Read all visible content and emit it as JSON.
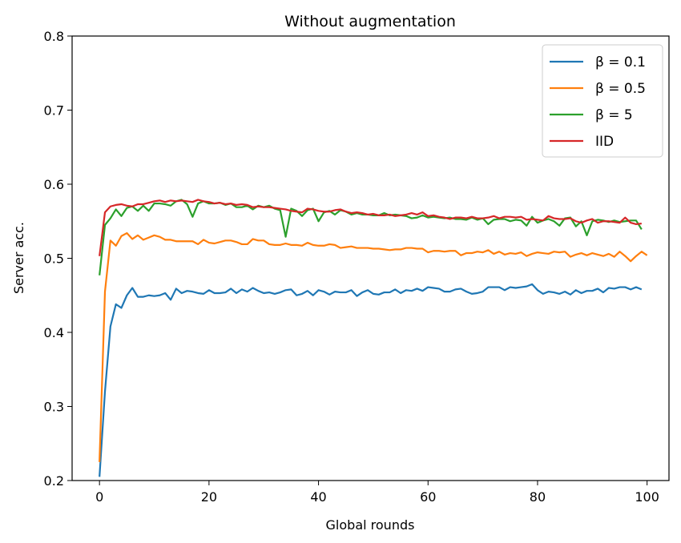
{
  "chart_data": {
    "type": "line",
    "title": "Without augmentation",
    "xlabel": "Global rounds",
    "ylabel": "Server acc.",
    "xlim": [
      -5,
      104
    ],
    "ylim": [
      0.2,
      0.8
    ],
    "xticks": [
      0,
      20,
      40,
      60,
      80,
      100
    ],
    "yticks": [
      0.2,
      0.3,
      0.4,
      0.5,
      0.6,
      0.7,
      0.8
    ],
    "xtick_labels": [
      "0",
      "20",
      "40",
      "60",
      "80",
      "100"
    ],
    "ytick_labels": [
      "0.2",
      "0.3",
      "0.4",
      "0.5",
      "0.6",
      "0.7",
      "0.8"
    ],
    "grid": false,
    "legend_position": "top-right",
    "series": [
      {
        "name": "β = 0.1",
        "color": "#1f77b4",
        "values": [
          0.205,
          0.32,
          0.408,
          0.438,
          0.433,
          0.45,
          0.46,
          0.448,
          0.448,
          0.45,
          0.449,
          0.45,
          0.453,
          0.444,
          0.459,
          0.453,
          0.456,
          0.455,
          0.453,
          0.452,
          0.457,
          0.453,
          0.453,
          0.454,
          0.459,
          0.453,
          0.458,
          0.455,
          0.46,
          0.456,
          0.453,
          0.454,
          0.452,
          0.454,
          0.457,
          0.458,
          0.45,
          0.452,
          0.456,
          0.45,
          0.457,
          0.455,
          0.451,
          0.455,
          0.454,
          0.454,
          0.457,
          0.449,
          0.454,
          0.457,
          0.452,
          0.451,
          0.454,
          0.454,
          0.458,
          0.453,
          0.457,
          0.456,
          0.459,
          0.456,
          0.461,
          0.46,
          0.459,
          0.455,
          0.455,
          0.458,
          0.459,
          0.455,
          0.452,
          0.453,
          0.455,
          0.461,
          0.461,
          0.461,
          0.457,
          0.461,
          0.46,
          0.461,
          0.462,
          0.465,
          0.457,
          0.452,
          0.455,
          0.454,
          0.452,
          0.455,
          0.451,
          0.457,
          0.453,
          0.456,
          0.456,
          0.459,
          0.454,
          0.46,
          0.459,
          0.461,
          0.461,
          0.458,
          0.461,
          0.458
        ]
      },
      {
        "name": "β = 0.5",
        "color": "#ff7f0e",
        "values": [
          0.225,
          0.455,
          0.524,
          0.517,
          0.53,
          0.534,
          0.526,
          0.531,
          0.525,
          0.528,
          0.531,
          0.529,
          0.525,
          0.525,
          0.523,
          0.523,
          0.523,
          0.523,
          0.519,
          0.525,
          0.521,
          0.52,
          0.522,
          0.524,
          0.524,
          0.522,
          0.519,
          0.519,
          0.526,
          0.524,
          0.524,
          0.519,
          0.518,
          0.518,
          0.52,
          0.518,
          0.518,
          0.517,
          0.521,
          0.518,
          0.517,
          0.517,
          0.519,
          0.518,
          0.514,
          0.515,
          0.516,
          0.514,
          0.514,
          0.514,
          0.513,
          0.513,
          0.512,
          0.511,
          0.512,
          0.512,
          0.514,
          0.514,
          0.513,
          0.513,
          0.508,
          0.51,
          0.51,
          0.509,
          0.51,
          0.51,
          0.504,
          0.507,
          0.507,
          0.509,
          0.508,
          0.511,
          0.506,
          0.509,
          0.505,
          0.507,
          0.506,
          0.508,
          0.503,
          0.506,
          0.508,
          0.507,
          0.506,
          0.509,
          0.508,
          0.509,
          0.502,
          0.505,
          0.507,
          0.504,
          0.507,
          0.505,
          0.503,
          0.506,
          0.502,
          0.509,
          0.503,
          0.496,
          0.503,
          0.509,
          0.504
        ]
      },
      {
        "name": "β = 5",
        "color": "#2ca02c",
        "values": [
          0.477,
          0.545,
          0.554,
          0.566,
          0.557,
          0.568,
          0.57,
          0.564,
          0.571,
          0.564,
          0.574,
          0.574,
          0.573,
          0.571,
          0.577,
          0.579,
          0.573,
          0.556,
          0.574,
          0.577,
          0.574,
          0.574,
          0.575,
          0.572,
          0.574,
          0.569,
          0.569,
          0.571,
          0.566,
          0.571,
          0.569,
          0.571,
          0.567,
          0.565,
          0.529,
          0.567,
          0.564,
          0.557,
          0.565,
          0.567,
          0.55,
          0.562,
          0.564,
          0.559,
          0.565,
          0.563,
          0.559,
          0.561,
          0.559,
          0.559,
          0.558,
          0.558,
          0.561,
          0.558,
          0.559,
          0.558,
          0.557,
          0.554,
          0.555,
          0.558,
          0.555,
          0.556,
          0.555,
          0.554,
          0.555,
          0.553,
          0.553,
          0.552,
          0.555,
          0.552,
          0.554,
          0.546,
          0.552,
          0.553,
          0.553,
          0.55,
          0.552,
          0.551,
          0.544,
          0.556,
          0.548,
          0.551,
          0.553,
          0.55,
          0.544,
          0.554,
          0.555,
          0.543,
          0.55,
          0.531,
          0.55,
          0.552,
          0.551,
          0.549,
          0.551,
          0.549,
          0.55,
          0.551,
          0.551,
          0.539
        ]
      },
      {
        "name": "IID",
        "color": "#d62728",
        "values": [
          0.503,
          0.562,
          0.57,
          0.572,
          0.573,
          0.571,
          0.57,
          0.573,
          0.573,
          0.575,
          0.577,
          0.578,
          0.576,
          0.578,
          0.577,
          0.578,
          0.577,
          0.576,
          0.579,
          0.577,
          0.576,
          0.574,
          0.575,
          0.573,
          0.574,
          0.572,
          0.573,
          0.572,
          0.569,
          0.57,
          0.569,
          0.569,
          0.568,
          0.567,
          0.566,
          0.564,
          0.563,
          0.562,
          0.567,
          0.566,
          0.564,
          0.563,
          0.563,
          0.565,
          0.566,
          0.563,
          0.561,
          0.562,
          0.561,
          0.559,
          0.56,
          0.558,
          0.558,
          0.559,
          0.557,
          0.558,
          0.559,
          0.561,
          0.559,
          0.562,
          0.557,
          0.558,
          0.556,
          0.555,
          0.553,
          0.555,
          0.555,
          0.554,
          0.556,
          0.554,
          0.554,
          0.555,
          0.557,
          0.554,
          0.556,
          0.556,
          0.555,
          0.556,
          0.552,
          0.553,
          0.552,
          0.551,
          0.557,
          0.554,
          0.553,
          0.553,
          0.554,
          0.55,
          0.548,
          0.551,
          0.553,
          0.548,
          0.55,
          0.55,
          0.549,
          0.548,
          0.555,
          0.548,
          0.546,
          0.547
        ]
      }
    ]
  }
}
